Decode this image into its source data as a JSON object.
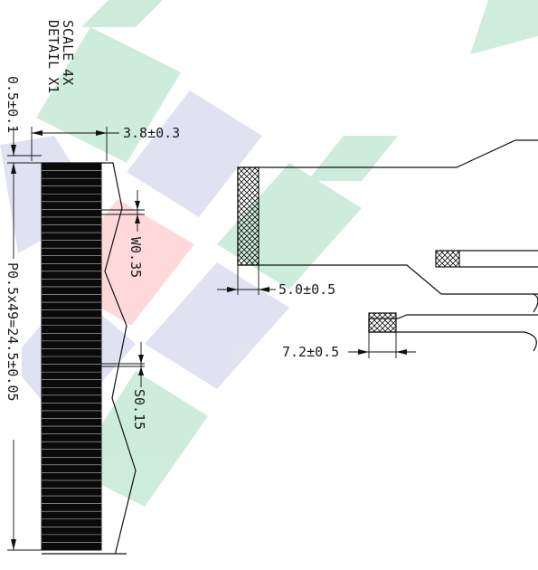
{
  "detail": {
    "line1": "DETAIL  X1",
    "line2": "SCALE  4X"
  },
  "dimensions": {
    "top_offset": "0.5±0.1",
    "width_total": "3.8±0.3",
    "lead_width": "W0.35",
    "lead_space": "S0.15",
    "pitch": "P0.5x49=24.5±0.05",
    "stiffener_length": "5.0±0.5",
    "tab_length": "7.2±0.5"
  },
  "colors": {
    "watermark_green": "#3cb878",
    "watermark_lavender": "#8b8fc8",
    "watermark_red": "#ff6b6b",
    "lead_black": "#0a0a0a"
  },
  "leads": {
    "count": 50
  }
}
